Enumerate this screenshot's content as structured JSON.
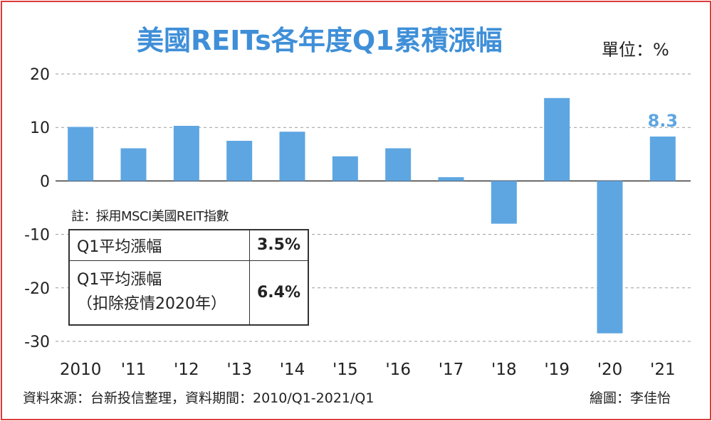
{
  "title": "美國REITs各年度Q1累積漲幅",
  "unit": "單位：%",
  "note": "註：採用MSCI美國REIT指數",
  "stats_table": [
    {
      "label": "Q1平均漲幅",
      "label_line2": "",
      "value": "3.5%"
    },
    {
      "label": "Q1平均漲幅",
      "label_line2": "（扣除疫情2020年）",
      "value": "6.4%"
    }
  ],
  "source": "資料來源：台新投信整理，資料期間：2010/Q1-2021/Q1",
  "credit": "繪圖：李佳怡",
  "colors": {
    "bar": "#5ea6e2",
    "title": "#3f8fd8",
    "highlight": "#5ea6e2",
    "frame": "#e03a3a"
  },
  "chart_data": {
    "type": "bar",
    "categories": [
      "2010",
      "'11",
      "'12",
      "'13",
      "'14",
      "'15",
      "'16",
      "'17",
      "'18",
      "'19",
      "'20",
      "'21"
    ],
    "values": [
      10.1,
      6.1,
      10.3,
      7.5,
      9.2,
      4.6,
      6.1,
      0.7,
      -8.0,
      15.5,
      -28.5,
      8.3
    ],
    "ylim": [
      -30,
      20
    ],
    "yticks": [
      20,
      10,
      0,
      -10,
      -20,
      -30
    ],
    "ytick_labels": [
      "20",
      "10",
      "0",
      "-10",
      "-20",
      "-30"
    ],
    "data_labels": [
      {
        "index": 11,
        "text": "8.3"
      }
    ],
    "grid": "dashed horizontal",
    "title": "美國REITs各年度Q1累積漲幅",
    "xlabel": "",
    "ylabel": ""
  }
}
